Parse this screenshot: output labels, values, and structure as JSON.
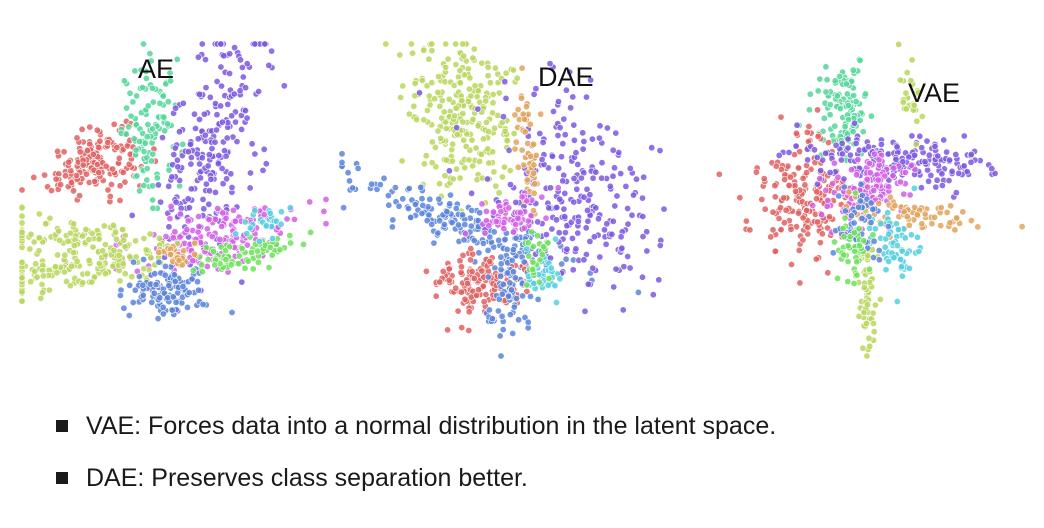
{
  "chart_data": [
    {
      "type": "scatter",
      "title": "AE",
      "clusters": [
        {
          "color": "#e06060",
          "center": [
            -0.55,
            0.25
          ],
          "spread": [
            0.16,
            0.1
          ],
          "angle": 0.4,
          "count": 170
        },
        {
          "color": "#55d69a",
          "center": [
            -0.15,
            0.45
          ],
          "spread": [
            0.1,
            0.22
          ],
          "angle": 0.0,
          "count": 110
        },
        {
          "color": "#7b58e0",
          "center": [
            0.25,
            0.35
          ],
          "spread": [
            0.14,
            0.45
          ],
          "angle": -0.25,
          "count": 240
        },
        {
          "color": "#d25fe6",
          "center": [
            0.25,
            -0.25
          ],
          "spread": [
            0.34,
            0.1
          ],
          "angle": 0.3,
          "count": 170
        },
        {
          "color": "#b8d65c",
          "center": [
            -0.6,
            -0.45
          ],
          "spread": [
            0.34,
            0.07
          ],
          "angle": 0.18,
          "count": 150
        },
        {
          "color": "#b8d65c",
          "center": [
            -0.65,
            -0.25
          ],
          "spread": [
            0.3,
            0.06
          ],
          "angle": -0.05,
          "count": 90
        },
        {
          "color": "#5b84db",
          "center": [
            -0.05,
            -0.6
          ],
          "spread": [
            0.13,
            0.08
          ],
          "angle": 0.0,
          "count": 110
        },
        {
          "color": "#6ee05c",
          "center": [
            0.45,
            -0.35
          ],
          "spread": [
            0.2,
            0.05
          ],
          "angle": 0.25,
          "count": 70
        },
        {
          "color": "#e0a35c",
          "center": [
            0.05,
            -0.35
          ],
          "spread": [
            0.08,
            0.05
          ],
          "angle": 0.0,
          "count": 25
        },
        {
          "color": "#54cfe0",
          "center": [
            0.62,
            -0.15
          ],
          "spread": [
            0.1,
            0.05
          ],
          "angle": 0.3,
          "count": 25
        }
      ]
    },
    {
      "type": "scatter",
      "title": "DAE",
      "clusters": [
        {
          "color": "#b8d65c",
          "center": [
            -0.25,
            0.55
          ],
          "spread": [
            0.16,
            0.26
          ],
          "angle": 0.2,
          "count": 250
        },
        {
          "color": "#5b84db",
          "center": [
            -0.3,
            -0.15
          ],
          "spread": [
            0.38,
            0.07
          ],
          "angle": -0.42,
          "count": 180
        },
        {
          "color": "#7b58e0",
          "center": [
            0.45,
            0.0
          ],
          "spread": [
            0.24,
            0.36
          ],
          "angle": 0.4,
          "count": 250
        },
        {
          "color": "#e06060",
          "center": [
            -0.15,
            -0.55
          ],
          "spread": [
            0.15,
            0.1
          ],
          "angle": 0.2,
          "count": 150
        },
        {
          "color": "#5b84db",
          "center": [
            0.05,
            -0.55
          ],
          "spread": [
            0.08,
            0.18
          ],
          "angle": -0.2,
          "count": 90
        },
        {
          "color": "#e0a35c",
          "center": [
            0.15,
            0.35
          ],
          "spread": [
            0.04,
            0.2
          ],
          "angle": 0.1,
          "count": 50
        },
        {
          "color": "#d25fe6",
          "center": [
            0.05,
            -0.1
          ],
          "spread": [
            0.12,
            0.06
          ],
          "angle": 0.3,
          "count": 60
        },
        {
          "color": "#54cfe0",
          "center": [
            0.25,
            -0.5
          ],
          "spread": [
            0.06,
            0.1
          ],
          "angle": 0.0,
          "count": 35
        },
        {
          "color": "#6ee05c",
          "center": [
            0.2,
            -0.35
          ],
          "spread": [
            0.05,
            0.08
          ],
          "angle": 0.0,
          "count": 25
        }
      ]
    },
    {
      "type": "scatter",
      "title": "VAE",
      "clusters": [
        {
          "color": "#55d69a",
          "center": [
            -0.2,
            0.55
          ],
          "spread": [
            0.08,
            0.16
          ],
          "angle": 0.0,
          "count": 110
        },
        {
          "color": "#e06060",
          "center": [
            -0.45,
            0.0
          ],
          "spread": [
            0.16,
            0.22
          ],
          "angle": 0.0,
          "count": 190
        },
        {
          "color": "#7b58e0",
          "center": [
            0.15,
            0.25
          ],
          "spread": [
            0.3,
            0.09
          ],
          "angle": -0.05,
          "count": 200
        },
        {
          "color": "#d25fe6",
          "center": [
            -0.05,
            0.05
          ],
          "spread": [
            0.14,
            0.12
          ],
          "angle": 0.0,
          "count": 130
        },
        {
          "color": "#e0a35c",
          "center": [
            0.25,
            -0.1
          ],
          "spread": [
            0.2,
            0.05
          ],
          "angle": -0.15,
          "count": 70
        },
        {
          "color": "#54cfe0",
          "center": [
            0.12,
            -0.3
          ],
          "spread": [
            0.07,
            0.12
          ],
          "angle": 0.0,
          "count": 60
        },
        {
          "color": "#b8d65c",
          "center": [
            -0.05,
            -0.6
          ],
          "spread": [
            0.03,
            0.22
          ],
          "angle": 0.0,
          "count": 60
        },
        {
          "color": "#b8d65c",
          "center": [
            0.22,
            0.7
          ],
          "spread": [
            0.03,
            0.12
          ],
          "angle": 0.15,
          "count": 25
        },
        {
          "color": "#5b84db",
          "center": [
            -0.1,
            -0.15
          ],
          "spread": [
            0.08,
            0.12
          ],
          "angle": 0.0,
          "count": 55
        },
        {
          "color": "#6ee05c",
          "center": [
            -0.15,
            -0.3
          ],
          "spread": [
            0.05,
            0.12
          ],
          "angle": 0.0,
          "count": 45
        }
      ]
    }
  ],
  "bullets": [
    "VAE: Forces data into a normal distribution in the latent space.",
    "DAE: Preserves class separation better."
  ]
}
